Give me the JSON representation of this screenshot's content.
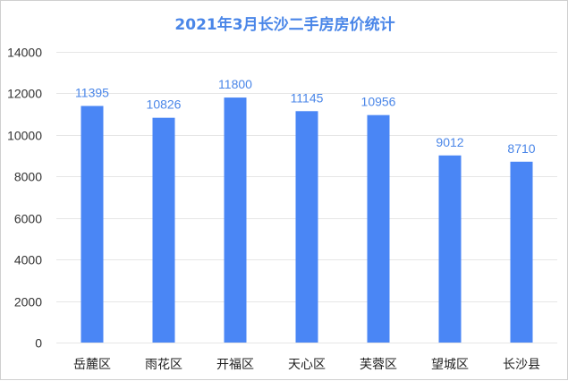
{
  "chart_data": {
    "type": "bar",
    "title": "2021年3月长沙二手房房价统计",
    "categories": [
      "岳麓区",
      "雨花区",
      "开福区",
      "天心区",
      "芙蓉区",
      "望城区",
      "长沙县"
    ],
    "values": [
      11395,
      10826,
      11800,
      11145,
      10956,
      9012,
      8710
    ],
    "xlabel": "",
    "ylabel": "",
    "ylim": [
      0,
      14000
    ],
    "yticks": [
      0,
      2000,
      4000,
      6000,
      8000,
      10000,
      12000,
      14000
    ],
    "grid": true,
    "legend": "none",
    "colors": {
      "bar": "#4a86f5",
      "data_label": "#4a86e8",
      "title": "#4a86e8",
      "grid": "#e6e6e6"
    }
  }
}
